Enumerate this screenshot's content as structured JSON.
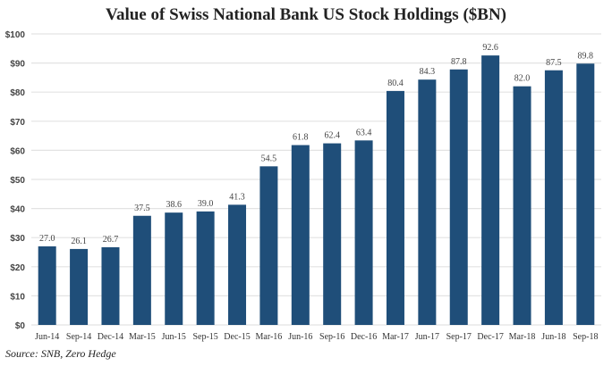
{
  "chart_data": {
    "type": "bar",
    "title": "Value of Swiss National Bank US Stock Holdings ($BN)",
    "categories": [
      "Jun-14",
      "Sep-14",
      "Dec-14",
      "Mar-15",
      "Jun-15",
      "Sep-15",
      "Dec-15",
      "Mar-16",
      "Jun-16",
      "Sep-16",
      "Dec-16",
      "Mar-17",
      "Jun-17",
      "Sep-17",
      "Dec-17",
      "Mar-18",
      "Jun-18",
      "Sep-18"
    ],
    "values": [
      27.0,
      26.1,
      26.7,
      37.5,
      38.6,
      39.0,
      41.3,
      54.5,
      61.8,
      62.4,
      63.4,
      80.4,
      84.3,
      87.8,
      92.6,
      82.0,
      87.5,
      89.8
    ],
    "data_labels": [
      "27.0",
      "26.1",
      "26.7",
      "37.5",
      "38.6",
      "39.0",
      "41.3",
      "54.5",
      "61.8",
      "62.4",
      "63.4",
      "80.4",
      "84.3",
      "87.8",
      "92.6",
      "82.0",
      "87.5",
      "89.8"
    ],
    "yticks": [
      "$0",
      "$10",
      "$20",
      "$30",
      "$40",
      "$50",
      "$60",
      "$70",
      "$80",
      "$90",
      "$100"
    ],
    "ylim": [
      0,
      100
    ],
    "grid": true,
    "bar_color": "#1f4e79",
    "source": "Source: SNB, Zero Hedge"
  }
}
